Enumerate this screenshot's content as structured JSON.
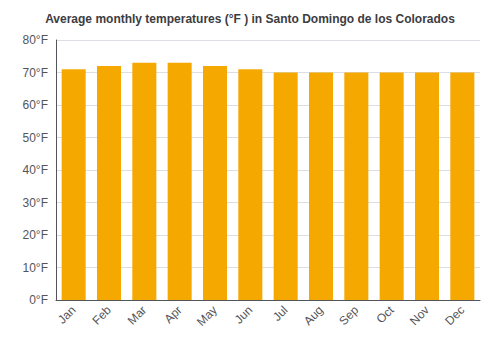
{
  "chart_data": {
    "type": "bar",
    "title": "Average monthly temperatures (°F ) in Santo Domingo de los Colorados",
    "categories": [
      "Jan",
      "Feb",
      "Mar",
      "Apr",
      "May",
      "Jun",
      "Jul",
      "Aug",
      "Sep",
      "Oct",
      "Nov",
      "Dec"
    ],
    "values": [
      71,
      72,
      73,
      73,
      72,
      71,
      70,
      70,
      70,
      70,
      70,
      70
    ],
    "color": "#F5A800",
    "ylim": [
      0,
      80
    ],
    "yticks": [
      {
        "value": 0,
        "label": "0°F"
      },
      {
        "value": 10,
        "label": "10°F"
      },
      {
        "value": 20,
        "label": "20°F"
      },
      {
        "value": 30,
        "label": "30°F"
      },
      {
        "value": 40,
        "label": "40°F"
      },
      {
        "value": 50,
        "label": "50°F"
      },
      {
        "value": 60,
        "label": "60°F"
      },
      {
        "value": 70,
        "label": "70°F"
      },
      {
        "value": 80,
        "label": "80°F"
      }
    ],
    "grid": true
  }
}
